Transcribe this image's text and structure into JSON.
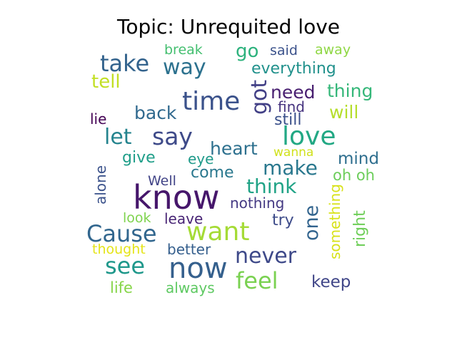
{
  "title": "Topic: Unrequited love",
  "palette": "viridis",
  "words": [
    {
      "text": "know",
      "color": "#46166b"
    },
    {
      "text": "now",
      "color": "#35608d"
    },
    {
      "text": "time",
      "color": "#3b528b"
    },
    {
      "text": "love",
      "color": "#22a884"
    },
    {
      "text": "want",
      "color": "#a5db36"
    },
    {
      "text": "Cause",
      "color": "#31668e"
    },
    {
      "text": "say",
      "color": "#3e4a89"
    },
    {
      "text": "feel",
      "color": "#7ad151"
    },
    {
      "text": "take",
      "color": "#33638d"
    },
    {
      "text": "see",
      "color": "#1f988b"
    },
    {
      "text": "never",
      "color": "#3e4989"
    },
    {
      "text": "make",
      "color": "#2a788e"
    },
    {
      "text": "way",
      "color": "#2c718e"
    },
    {
      "text": "got",
      "color": "#424086"
    },
    {
      "text": "let",
      "color": "#25848e"
    },
    {
      "text": "think",
      "color": "#20a386"
    },
    {
      "text": "heart",
      "color": "#2d708e"
    },
    {
      "text": "need",
      "color": "#481f70"
    },
    {
      "text": "thing",
      "color": "#35b779"
    },
    {
      "text": "go",
      "color": "#2db27d"
    },
    {
      "text": "one",
      "color": "#32648e"
    },
    {
      "text": "tell",
      "color": "#c2df23"
    },
    {
      "text": "will",
      "color": "#b5de2b"
    },
    {
      "text": "back",
      "color": "#30698e"
    },
    {
      "text": "everything",
      "color": "#21918c"
    },
    {
      "text": "mind",
      "color": "#2e6e8e"
    },
    {
      "text": "keep",
      "color": "#404688"
    },
    {
      "text": "still",
      "color": "#3b518b"
    },
    {
      "text": "give",
      "color": "#1f9e89"
    },
    {
      "text": "come",
      "color": "#2a788e"
    },
    {
      "text": "nothing",
      "color": "#443983"
    },
    {
      "text": "leave",
      "color": "#482475"
    },
    {
      "text": "oh oh",
      "color": "#6ccd5a"
    },
    {
      "text": "something",
      "color": "#d8e219"
    },
    {
      "text": "right",
      "color": "#6ece58"
    },
    {
      "text": "try",
      "color": "#3e4c8a"
    },
    {
      "text": "better",
      "color": "#355f8d"
    },
    {
      "text": "always",
      "color": "#5ec962"
    },
    {
      "text": "life",
      "color": "#86d549"
    },
    {
      "text": "thought",
      "color": "#e5e419"
    },
    {
      "text": "look",
      "color": "#7fd34e"
    },
    {
      "text": "Well",
      "color": "#414487"
    },
    {
      "text": "eye",
      "color": "#1f9a8a"
    },
    {
      "text": "lie",
      "color": "#440154"
    },
    {
      "text": "find",
      "color": "#46337f"
    },
    {
      "text": "alone",
      "color": "#3b528b"
    },
    {
      "text": "wanna",
      "color": "#d0e11c"
    },
    {
      "text": "break",
      "color": "#44bf70"
    },
    {
      "text": "said",
      "color": "#3b528b"
    },
    {
      "text": "away",
      "color": "#8fd744"
    }
  ]
}
